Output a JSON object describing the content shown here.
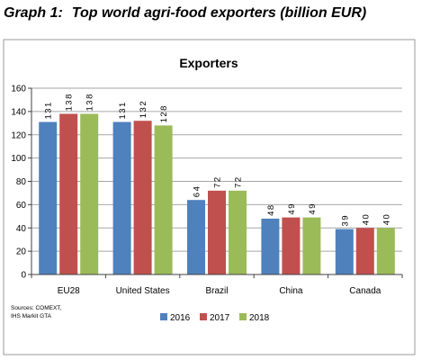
{
  "caption": {
    "number": "Graph 1:",
    "title": "Top world agri-food exporters (billion EUR)"
  },
  "sources": [
    "Sources: COMEXT,",
    "IHS Markit GTA"
  ],
  "chart_data": {
    "type": "bar",
    "title": "Exporters",
    "categories": [
      "EU28",
      "United States",
      "Brazil",
      "China",
      "Canada"
    ],
    "series": [
      {
        "name": "2016",
        "color": "#4f81bd",
        "values": [
          131,
          131,
          64,
          48,
          39
        ]
      },
      {
        "name": "2017",
        "color": "#c0504d",
        "values": [
          138,
          132,
          72,
          49,
          40
        ]
      },
      {
        "name": "2018",
        "color": "#9bbb59",
        "values": [
          138,
          128,
          72,
          49,
          40
        ]
      }
    ],
    "ylim": [
      0,
      160
    ],
    "yticks": [
      0,
      20,
      40,
      60,
      80,
      100,
      120,
      140,
      160
    ],
    "grid": true,
    "legend": "bottom"
  }
}
